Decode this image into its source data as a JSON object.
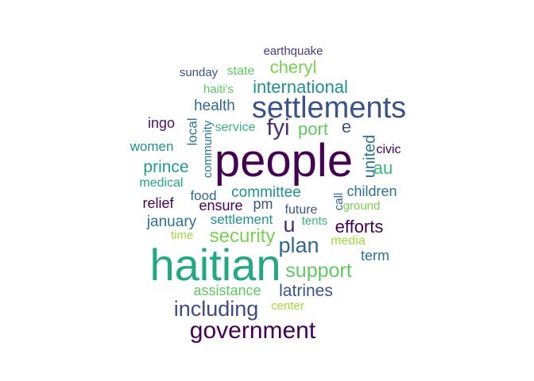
{
  "word_cloud": {
    "words": [
      {
        "text": "earthquake",
        "color": "#433e85"
      },
      {
        "text": "cheryl",
        "color": "#7ad151"
      },
      {
        "text": "sunday",
        "color": "#3b528b"
      },
      {
        "text": "state",
        "color": "#5ec962"
      },
      {
        "text": "international",
        "color": "#21918c"
      },
      {
        "text": "haiti's",
        "color": "#5ec962"
      },
      {
        "text": "health",
        "color": "#31688e"
      },
      {
        "text": "settlements",
        "color": "#3b528b"
      },
      {
        "text": "ingo",
        "color": "#471063"
      },
      {
        "text": "local",
        "color": "#2c728e"
      },
      {
        "text": "community",
        "color": "#2a788e"
      },
      {
        "text": "service",
        "color": "#35b779"
      },
      {
        "text": "fyi",
        "color": "#472d7b"
      },
      {
        "text": "port",
        "color": "#5ec962"
      },
      {
        "text": "e",
        "color": "#3b528b"
      },
      {
        "text": "women",
        "color": "#21918c"
      },
      {
        "text": "united",
        "color": "#2c728e"
      },
      {
        "text": "civic",
        "color": "#440154"
      },
      {
        "text": "people",
        "color": "#440154"
      },
      {
        "text": "prince",
        "color": "#1f9e89"
      },
      {
        "text": "au",
        "color": "#35b779"
      },
      {
        "text": "medical",
        "color": "#22a884"
      },
      {
        "text": "committee",
        "color": "#21918c"
      },
      {
        "text": "call",
        "color": "#31688e"
      },
      {
        "text": "children",
        "color": "#2c728e"
      },
      {
        "text": "food",
        "color": "#31688e"
      },
      {
        "text": "relief",
        "color": "#440154"
      },
      {
        "text": "ensure",
        "color": "#440154"
      },
      {
        "text": "pm",
        "color": "#3b528b"
      },
      {
        "text": "future",
        "color": "#3b528b"
      },
      {
        "text": "ground",
        "color": "#7ad151"
      },
      {
        "text": "january",
        "color": "#2c728e"
      },
      {
        "text": "settlement",
        "color": "#21918c"
      },
      {
        "text": "u",
        "color": "#472d7b"
      },
      {
        "text": "tents",
        "color": "#35b779"
      },
      {
        "text": "efforts",
        "color": "#440154"
      },
      {
        "text": "time",
        "color": "#a0da39"
      },
      {
        "text": "security",
        "color": "#7ad151"
      },
      {
        "text": "media",
        "color": "#a0da39"
      },
      {
        "text": "plan",
        "color": "#31688e"
      },
      {
        "text": "term",
        "color": "#2c728e"
      },
      {
        "text": "haitian",
        "color": "#22a884"
      },
      {
        "text": "support",
        "color": "#5ec962"
      },
      {
        "text": "assistance",
        "color": "#5ec962"
      },
      {
        "text": "latrines",
        "color": "#3b528b"
      },
      {
        "text": "including",
        "color": "#3e4a89"
      },
      {
        "text": "center",
        "color": "#a0da39"
      },
      {
        "text": "government",
        "color": "#440154"
      }
    ]
  }
}
